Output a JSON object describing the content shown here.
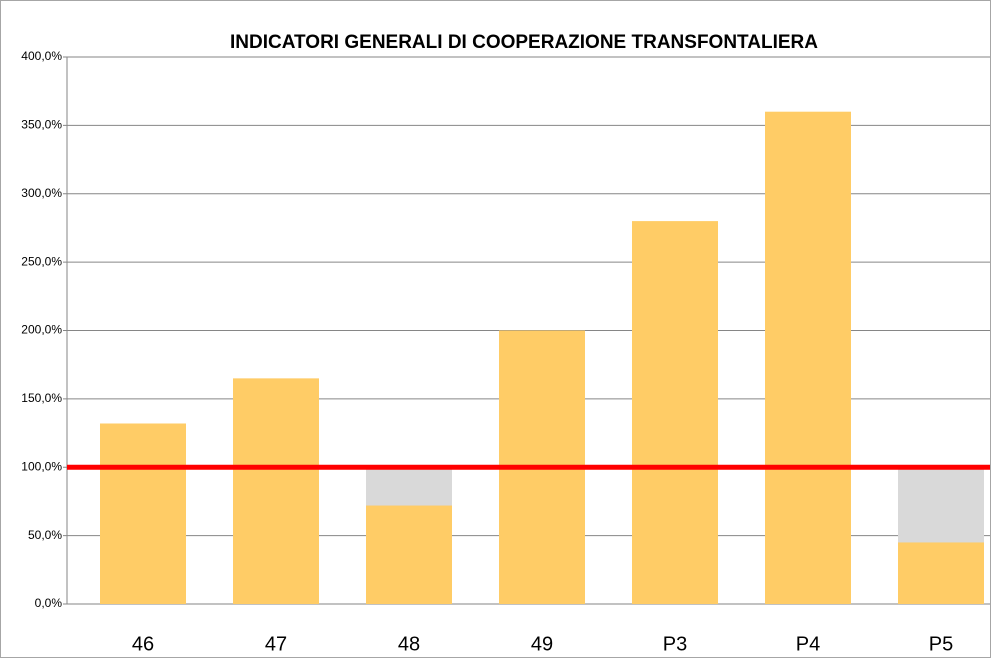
{
  "chart_data": {
    "type": "bar",
    "title": "INDICATORI GENERALI DI COOPERAZIONE TRANSFONTALIERA",
    "categories": [
      "46",
      "47",
      "48",
      "49",
      "P3",
      "P4",
      "P5"
    ],
    "series": [
      {
        "color": "#d9d9d9",
        "values": [
          null,
          null,
          100,
          null,
          null,
          null,
          100
        ]
      },
      {
        "color": "#ffcc66",
        "values": [
          132,
          165,
          72,
          200,
          280,
          360,
          45
        ]
      }
    ],
    "reference_line": {
      "value": 100,
      "color": "#ff0000"
    },
    "ylim": [
      0,
      400
    ],
    "yticks": [
      {
        "value": 0,
        "label": "0,0%"
      },
      {
        "value": 50,
        "label": "50,0%"
      },
      {
        "value": 100,
        "label": "100,0%"
      },
      {
        "value": 150,
        "label": "150,0%"
      },
      {
        "value": 200,
        "label": "200,0%"
      },
      {
        "value": 250,
        "label": "250,0%"
      },
      {
        "value": 300,
        "label": "300,0%"
      },
      {
        "value": 350,
        "label": "350,0%"
      },
      {
        "value": 400,
        "label": "400,0%"
      }
    ],
    "grid": true
  }
}
